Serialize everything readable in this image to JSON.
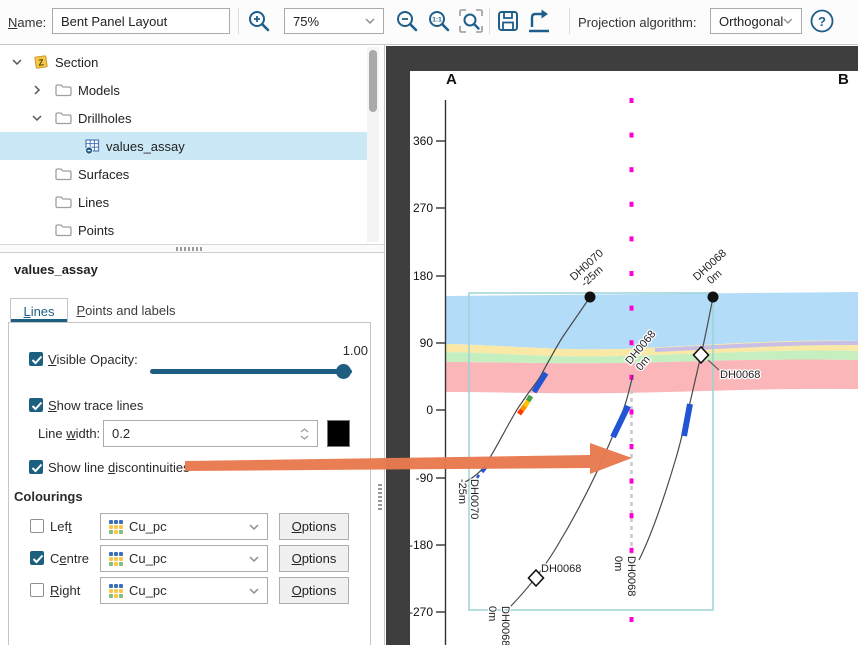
{
  "toolbar": {
    "name_label": "Name:",
    "name_value": "Bent Panel Layout",
    "zoom_value": "75%",
    "projection_label": "Projection algorithm:",
    "projection_value": "Orthogonal"
  },
  "tree": {
    "items": [
      {
        "label": "Section"
      },
      {
        "label": "Models"
      },
      {
        "label": "Drillholes"
      },
      {
        "label": "values_assay"
      },
      {
        "label": "Surfaces"
      },
      {
        "label": "Lines"
      },
      {
        "label": "Points"
      }
    ]
  },
  "properties": {
    "title": "values_assay",
    "tabs": {
      "lines": "Lines",
      "points": "Points and labels"
    },
    "visible_label": "Visible",
    "opacity_label": "Opacity:",
    "opacity_value": "1.00",
    "show_trace_lines_label": "Show trace lines",
    "line_width_label": "Line width:",
    "line_width_value": "0.2",
    "show_discontinuities_label": "Show line discontinuities",
    "colourings": {
      "heading": "Colourings",
      "options_label": "Options",
      "rows": [
        {
          "label": "Left",
          "value": "Cu_pc",
          "checked": false
        },
        {
          "label": "Centre",
          "value": "Cu_pc",
          "checked": true
        },
        {
          "label": "Right",
          "value": "Cu_pc",
          "checked": false
        }
      ]
    }
  },
  "section": {
    "corner_a": "A",
    "corner_b": "B",
    "ticks": [
      "360",
      "270",
      "180",
      "90",
      "0",
      "-90",
      "-180",
      "-270"
    ],
    "labels": {
      "dh0070": "DH0070",
      "dh0068": "DH0068",
      "off25": "-25m",
      "off0": "0m"
    },
    "colors": {
      "band_blue": "#b3dcf8",
      "band_lavender": "#c9bfe6",
      "band_yellow": "#fae9a6",
      "band_green": "#c6efc0",
      "band_pink": "#fbb6ba",
      "extent_teal": "#9bd3d6",
      "bend_magenta": "#ff00ce",
      "discontinuity_gray": "#c9c9c9",
      "interval_blue": "#2155d4",
      "arrow_orange": "#e87a50"
    }
  }
}
